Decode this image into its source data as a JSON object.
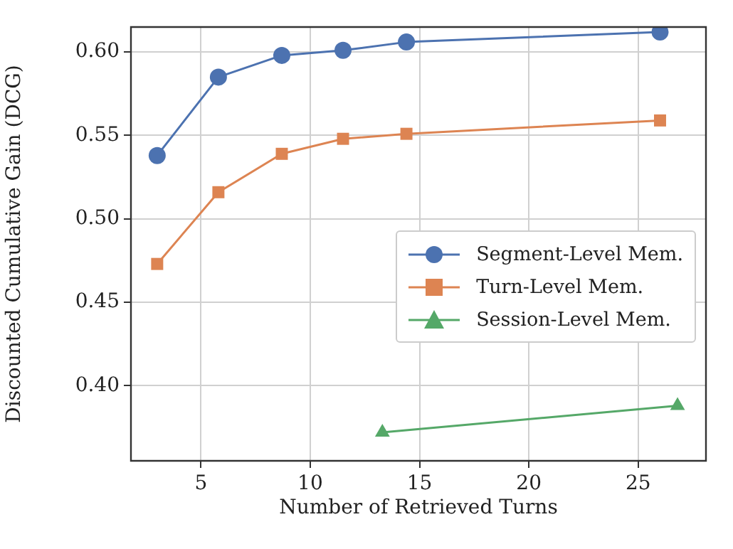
{
  "chart_data": {
    "type": "line",
    "xlabel": "Number of Retrieved Turns",
    "ylabel": "Discounted Cumulative Gain (DCG)",
    "xlim": [
      1.8,
      28.1
    ],
    "xticks": [
      5,
      10,
      15,
      20,
      25
    ],
    "ylim": [
      0.355,
      0.615
    ],
    "yticks": [
      {
        "value": 0.4,
        "label": "0.40"
      },
      {
        "value": 0.45,
        "label": "0.45"
      },
      {
        "value": 0.5,
        "label": "0.50"
      },
      {
        "value": 0.55,
        "label": "0.55"
      },
      {
        "value": 0.6,
        "label": "0.60"
      }
    ],
    "grid": true,
    "legend": "center right",
    "line_style": "solid",
    "series": [
      {
        "name": "Segment-Level Mem.",
        "color": "#4c72b0",
        "marker": "circle",
        "x": [
          3,
          5.8,
          8.7,
          11.5,
          14.4,
          26
        ],
        "values": [
          0.538,
          0.585,
          0.598,
          0.601,
          0.606,
          0.612
        ]
      },
      {
        "name": "Turn-Level Mem.",
        "color": "#dd8452",
        "marker": "square",
        "x": [
          3,
          5.8,
          8.7,
          11.5,
          14.4,
          26
        ],
        "values": [
          0.473,
          0.516,
          0.539,
          0.548,
          0.551,
          0.559
        ]
      },
      {
        "name": "Session-Level Mem.",
        "color": "#55a868",
        "marker": "triangle",
        "x": [
          13.3,
          26.8
        ],
        "values": [
          0.372,
          0.388
        ]
      }
    ]
  }
}
